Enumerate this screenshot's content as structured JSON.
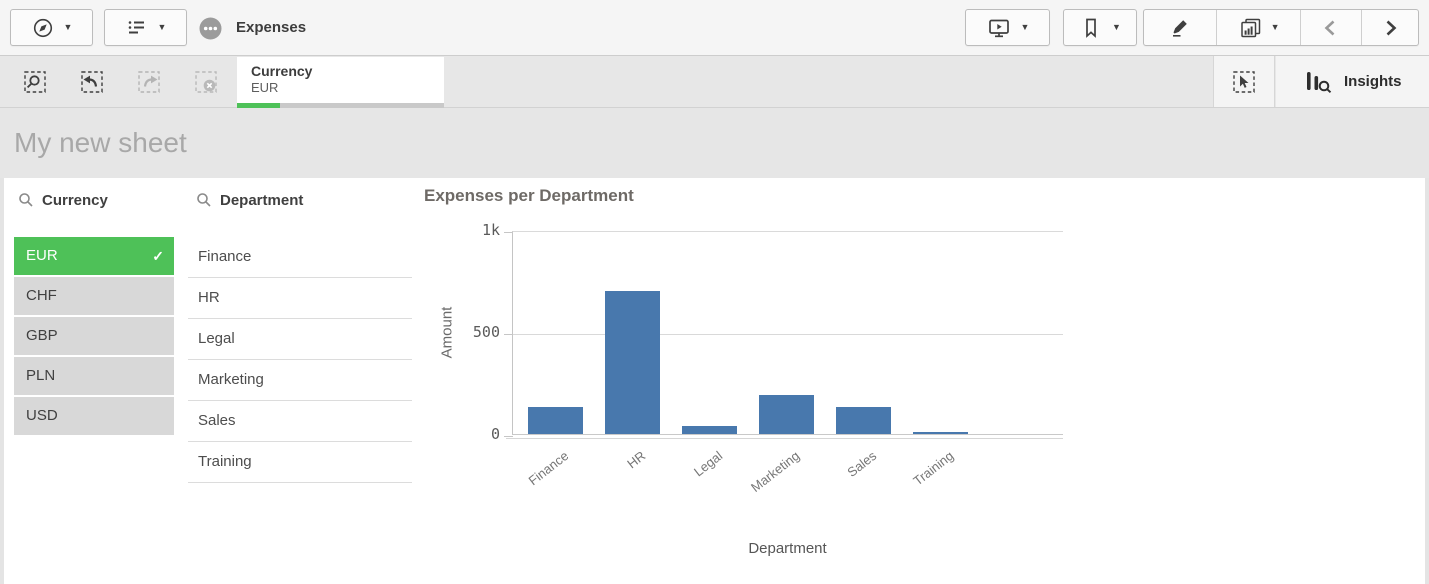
{
  "app": {
    "title": "Expenses"
  },
  "icons": {
    "caret": "▼",
    "check": "✓"
  },
  "selections_bar": {
    "chip": {
      "field": "Currency",
      "value": "EUR",
      "selected_ratio": 0.21
    },
    "insights_label": "Insights"
  },
  "sheet": {
    "title": "My new sheet"
  },
  "filter_panes": {
    "currency": {
      "title": "Currency",
      "items": [
        {
          "label": "EUR",
          "state": "selected"
        },
        {
          "label": "CHF",
          "state": "alternative"
        },
        {
          "label": "GBP",
          "state": "alternative"
        },
        {
          "label": "PLN",
          "state": "alternative"
        },
        {
          "label": "USD",
          "state": "alternative"
        }
      ]
    },
    "department": {
      "title": "Department",
      "items": [
        {
          "label": "Finance"
        },
        {
          "label": "HR"
        },
        {
          "label": "Legal"
        },
        {
          "label": "Marketing"
        },
        {
          "label": "Sales"
        },
        {
          "label": "Training"
        }
      ]
    }
  },
  "chart_data": {
    "type": "bar",
    "title": "Expenses per Department",
    "xlabel": "Department",
    "ylabel": "Amount",
    "categories": [
      "Finance",
      "HR",
      "Legal",
      "Marketing",
      "Sales",
      "Training"
    ],
    "values": [
      130,
      700,
      40,
      190,
      130,
      10
    ],
    "ylim": [
      0,
      1000
    ],
    "yticks": [
      {
        "v": 0,
        "label": "0"
      },
      {
        "v": 500,
        "label": "500"
      },
      {
        "v": 1000,
        "label": "1k"
      }
    ],
    "bar_color": "#4878ad",
    "grid": true,
    "legend": false
  },
  "colors": {
    "selected_green": "#4ec158",
    "alternative_gray": "#d8d8d8",
    "bar_blue": "#4878ad"
  }
}
